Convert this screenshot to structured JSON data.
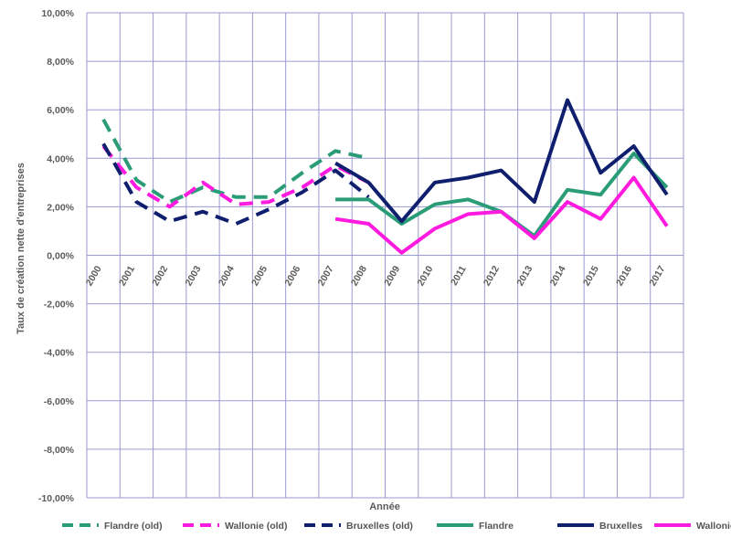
{
  "chart_data": {
    "type": "line",
    "xlabel": "Année",
    "ylabel": "Taux de création nette d'entreprises",
    "ylim": [
      -10,
      10
    ],
    "y_step": 2,
    "y_ticks": [
      "10,00%",
      "8,00%",
      "6,00%",
      "4,00%",
      "2,00%",
      "0,00%",
      "-2,00%",
      "-4,00%",
      "-6,00%",
      "-8,00%",
      "-10,00%"
    ],
    "categories": [
      "2000",
      "2001",
      "2002",
      "2003",
      "2004",
      "2005",
      "2006",
      "2007",
      "2008",
      "2009",
      "2010",
      "2011",
      "2012",
      "2013",
      "2014",
      "2015",
      "2016",
      "2017"
    ],
    "grid": true,
    "legend_position": "bottom",
    "series": [
      {
        "name": "Flandre (old)",
        "color": "#2a9d78",
        "dash": true,
        "values": [
          5.6,
          3.1,
          2.2,
          2.8,
          2.4,
          2.4,
          3.4,
          4.3,
          4.0,
          null,
          null,
          null,
          null,
          null,
          null,
          null,
          null,
          null
        ]
      },
      {
        "name": "Wallonie (old)",
        "color": "#ff1adf",
        "dash": true,
        "values": [
          4.5,
          2.8,
          2.0,
          3.0,
          2.1,
          2.2,
          2.8,
          3.7,
          3.0,
          null,
          null,
          null,
          null,
          null,
          null,
          null,
          null,
          null
        ]
      },
      {
        "name": "Bruxelles (old)",
        "color": "#0f1f6e",
        "dash": true,
        "values": [
          4.6,
          2.2,
          1.4,
          1.8,
          1.3,
          1.9,
          2.6,
          3.5,
          2.4,
          null,
          null,
          null,
          null,
          null,
          null,
          null,
          null,
          null
        ]
      },
      {
        "name": "Flandre",
        "color": "#2a9d78",
        "dash": false,
        "values": [
          null,
          null,
          null,
          null,
          null,
          null,
          null,
          2.3,
          2.3,
          1.3,
          2.1,
          2.3,
          1.8,
          0.8,
          2.7,
          2.5,
          4.2,
          2.8
        ]
      },
      {
        "name": "Bruxelles",
        "color": "#0f1f6e",
        "dash": false,
        "values": [
          null,
          null,
          null,
          null,
          null,
          null,
          null,
          3.8,
          3.0,
          1.4,
          3.0,
          3.2,
          3.5,
          2.2,
          6.4,
          3.4,
          4.5,
          2.5
        ]
      },
      {
        "name": "Wallonie",
        "color": "#ff1adf",
        "dash": false,
        "values": [
          null,
          null,
          null,
          null,
          null,
          null,
          null,
          1.5,
          1.3,
          0.1,
          1.1,
          1.7,
          1.8,
          0.7,
          2.2,
          1.5,
          3.2,
          1.2
        ]
      }
    ]
  }
}
